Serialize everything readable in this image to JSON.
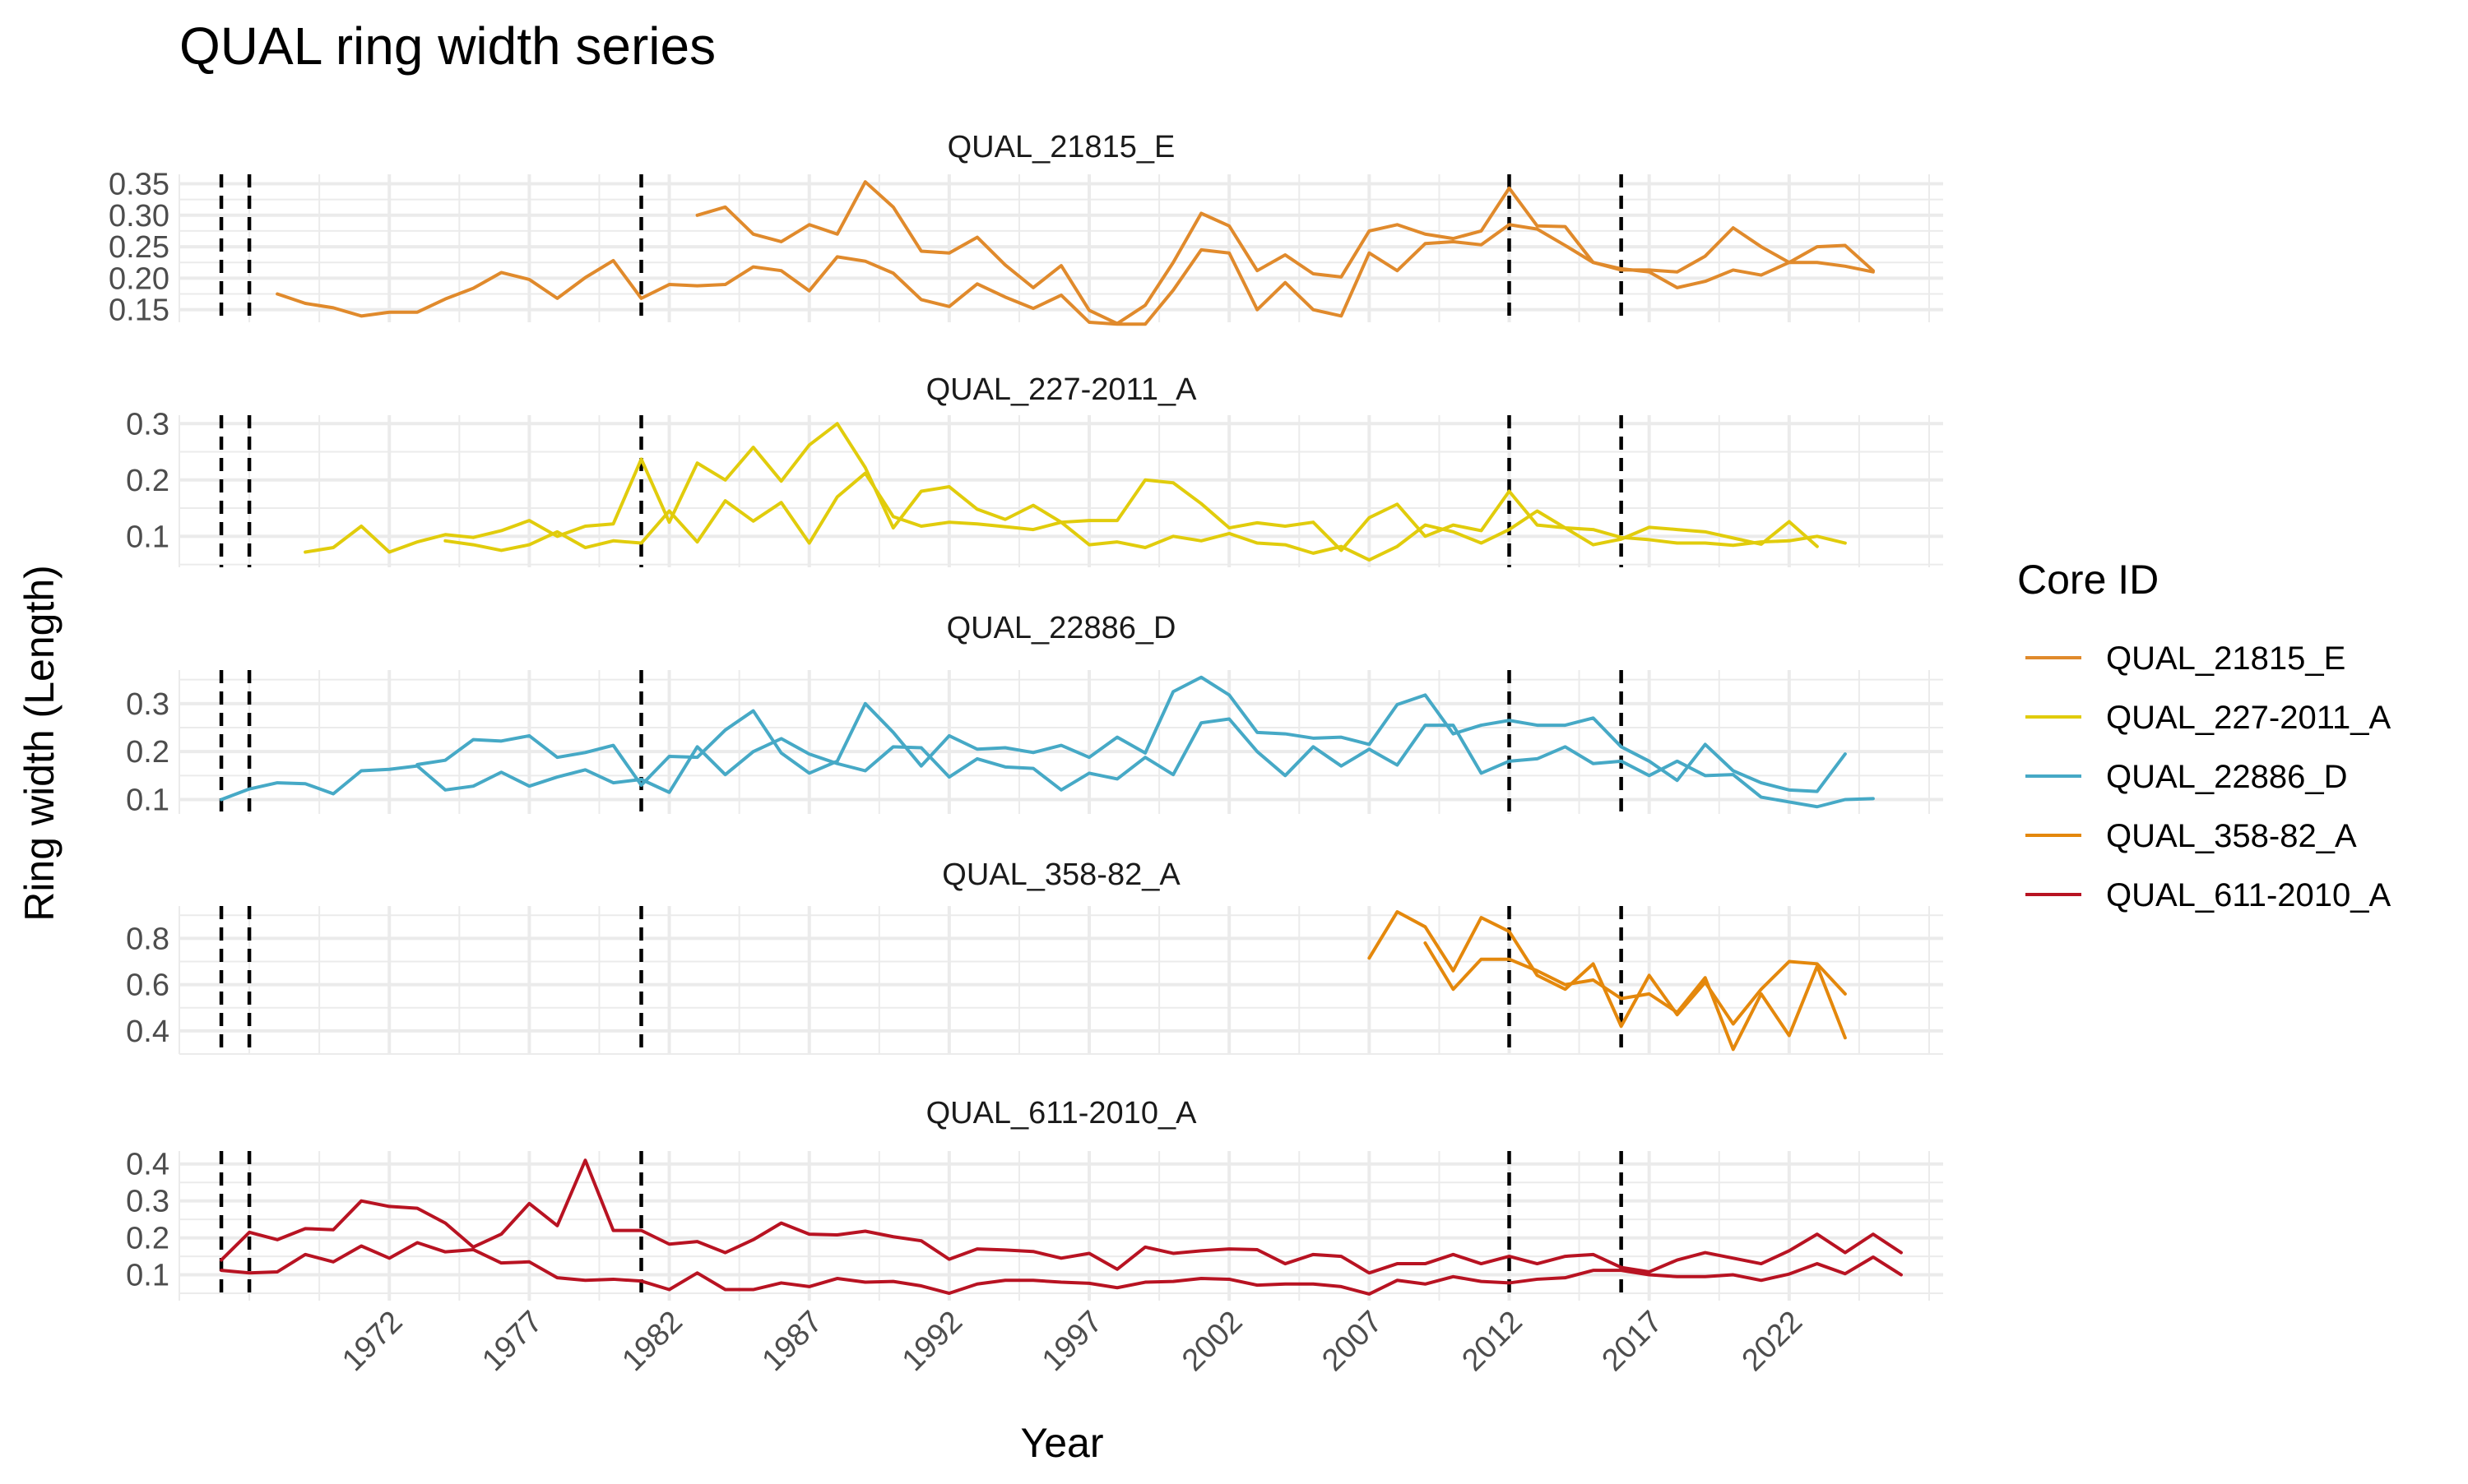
{
  "chart_data": {
    "type": "line",
    "title": "QUAL ring width series",
    "xlabel": "Year",
    "ylabel": "Ring width (Length)",
    "legend": {
      "title": "Core ID",
      "placement": "right",
      "entries": [
        {
          "name": "QUAL_21815_E",
          "color": "#E08A2C"
        },
        {
          "name": "QUAL_227-2011_A",
          "color": "#E1CC0C"
        },
        {
          "name": "QUAL_22886_D",
          "color": "#46A9C6"
        },
        {
          "name": "QUAL_358-82_A",
          "color": "#E4880C"
        },
        {
          "name": "QUAL_611-2010_A",
          "color": "#B81322"
        }
      ]
    },
    "x_ticks": [
      1972,
      1977,
      1982,
      1987,
      1992,
      1997,
      2002,
      2007,
      2012,
      2017,
      2022
    ],
    "xlim": [
      1964.5,
      2027.5
    ],
    "marker_years": [
      1966,
      1967,
      1981,
      2012,
      2016
    ],
    "grid": true,
    "panels": [
      {
        "title": "QUAL_21815_E",
        "color": "#E08A2C",
        "ylim": [
          0.13,
          0.365
        ],
        "y_ticks": [
          0.15,
          0.2,
          0.25,
          0.3,
          0.35
        ],
        "y_tick_labels": [
          "0.15",
          "0.20",
          "0.25",
          "0.30",
          "0.35"
        ],
        "series": [
          {
            "x_start": 1968,
            "values": [
              0.175,
              0.16,
              0.153,
              0.14,
              0.146,
              0.146,
              0.167,
              0.184,
              0.209,
              0.198,
              0.168,
              0.201,
              0.228,
              0.168,
              0.19,
              0.188,
              0.19,
              0.218,
              0.212,
              0.18,
              0.234,
              0.227,
              0.208,
              0.166,
              0.155,
              0.191,
              0.17,
              0.152,
              0.173,
              0.13,
              0.127,
              0.127,
              0.181,
              0.245,
              0.24,
              0.15,
              0.193,
              0.15,
              0.14,
              0.24,
              0.212,
              0.255,
              0.258,
              0.253,
              0.285,
              0.278,
              0.252,
              0.225,
              0.215,
              0.21,
              0.185,
              0.195,
              0.213,
              0.205,
              0.225,
              0.25,
              0.252,
              0.212
            ]
          },
          {
            "x_start": 1983,
            "values": [
              0.3,
              0.313,
              0.27,
              0.258,
              0.285,
              0.27,
              0.353,
              0.313,
              0.243,
              0.24,
              0.265,
              0.221,
              0.185,
              0.22,
              0.149,
              0.128,
              0.157,
              0.225,
              0.303,
              0.283,
              0.212,
              0.237,
              0.207,
              0.202,
              0.275,
              0.285,
              0.27,
              0.263,
              0.275,
              0.343,
              0.283,
              0.282,
              0.225,
              0.213,
              0.213,
              0.21,
              0.235,
              0.28,
              0.25,
              0.225,
              0.225,
              0.219,
              0.21
            ]
          }
        ]
      },
      {
        "title": "QUAL_227-2011_A",
        "color": "#E1CC0C",
        "ylim": [
          0.045,
          0.315
        ],
        "y_ticks": [
          0.1,
          0.2,
          0.3
        ],
        "y_tick_labels": [
          "0.1",
          "0.2",
          "0.3"
        ],
        "series": [
          {
            "x_start": 1969,
            "values": [
              0.072,
              0.08,
              0.118,
              0.072,
              0.09,
              0.103,
              0.098,
              0.11,
              0.128,
              0.1,
              0.118,
              0.122,
              0.237,
              0.125,
              0.23,
              0.2,
              0.258,
              0.198,
              0.262,
              0.3,
              0.222,
              0.115,
              0.18,
              0.188,
              0.148,
              0.13,
              0.155,
              0.125,
              0.128,
              0.128,
              0.2,
              0.195,
              0.158,
              0.115,
              0.124,
              0.118,
              0.125,
              0.075,
              0.133,
              0.157,
              0.1,
              0.12,
              0.11,
              0.18,
              0.12,
              0.115,
              0.085,
              0.095,
              0.116,
              0.112,
              0.108,
              0.097,
              0.086,
              0.126,
              0.082
            ]
          },
          {
            "x_start": 1974,
            "values": [
              0.092,
              0.085,
              0.075,
              0.085,
              0.108,
              0.08,
              0.092,
              0.088,
              0.145,
              0.09,
              0.163,
              0.127,
              0.16,
              0.088,
              0.17,
              0.212,
              0.135,
              0.118,
              0.125,
              0.122,
              0.117,
              0.112,
              0.125,
              0.085,
              0.09,
              0.08,
              0.1,
              0.092,
              0.105,
              0.088,
              0.085,
              0.07,
              0.082,
              0.058,
              0.082,
              0.12,
              0.108,
              0.088,
              0.112,
              0.145,
              0.115,
              0.112,
              0.098,
              0.094,
              0.088,
              0.088,
              0.084,
              0.09,
              0.092,
              0.1,
              0.088
            ]
          }
        ]
      },
      {
        "title": "QUAL_22886_D",
        "color": "#46A9C6",
        "ylim": [
          0.07,
          0.37
        ],
        "y_ticks": [
          0.1,
          0.2,
          0.3
        ],
        "y_tick_labels": [
          "0.1",
          "0.2",
          "0.3"
        ],
        "series": [
          {
            "x_start": 1966,
            "values": [
              0.1,
              0.122,
              0.135,
              0.133,
              0.112,
              0.16,
              0.163,
              0.17,
              0.12,
              0.128,
              0.157,
              0.128,
              0.147,
              0.162,
              0.135,
              0.142,
              0.115,
              0.21,
              0.152,
              0.2,
              0.227,
              0.195,
              0.175,
              0.16,
              0.21,
              0.208,
              0.147,
              0.185,
              0.168,
              0.165,
              0.12,
              0.155,
              0.143,
              0.188,
              0.152,
              0.26,
              0.268,
              0.2,
              0.15,
              0.21,
              0.17,
              0.205,
              0.172,
              0.255,
              0.255,
              0.155,
              0.18,
              0.185,
              0.21,
              0.175,
              0.18,
              0.15,
              0.18,
              0.15,
              0.152,
              0.105,
              0.095,
              0.085,
              0.1,
              0.102
            ]
          },
          {
            "x_start": 1973,
            "values": [
              0.173,
              0.182,
              0.225,
              0.222,
              0.233,
              0.188,
              0.198,
              0.213,
              0.13,
              0.19,
              0.188,
              0.245,
              0.285,
              0.197,
              0.155,
              0.18,
              0.3,
              0.24,
              0.17,
              0.233,
              0.205,
              0.208,
              0.198,
              0.213,
              0.188,
              0.23,
              0.197,
              0.325,
              0.355,
              0.318,
              0.24,
              0.237,
              0.228,
              0.23,
              0.215,
              0.298,
              0.318,
              0.237,
              0.255,
              0.265,
              0.255,
              0.255,
              0.27,
              0.21,
              0.18,
              0.14,
              0.215,
              0.16,
              0.135,
              0.12,
              0.117,
              0.195
            ]
          }
        ]
      },
      {
        "title": "QUAL_358-82_A",
        "color": "#E4880C",
        "ylim": [
          0.3,
          0.94
        ],
        "y_ticks": [
          0.4,
          0.6,
          0.8
        ],
        "y_tick_labels": [
          "0.4",
          "0.6",
          "0.8"
        ],
        "series": [
          {
            "x_start": 2007,
            "values": [
              0.715,
              0.915,
              0.85,
              0.66,
              0.89,
              0.83,
              0.64,
              0.58,
              0.69,
              0.42,
              0.64,
              0.47,
              0.61,
              0.43,
              0.58,
              0.7,
              0.69,
              0.56
            ]
          },
          {
            "x_start": 2009,
            "values": [
              0.78,
              0.58,
              0.71,
              0.71,
              0.66,
              0.6,
              0.62,
              0.54,
              0.56,
              0.48,
              0.63,
              0.32,
              0.56,
              0.38,
              0.68,
              0.37
            ]
          }
        ]
      },
      {
        "title": "QUAL_611-2010_A",
        "color": "#B81322",
        "ylim": [
          0.03,
          0.435
        ],
        "y_ticks": [
          0.1,
          0.2,
          0.3,
          0.4
        ],
        "y_tick_labels": [
          "0.1",
          "0.2",
          "0.3",
          "0.4"
        ],
        "series": [
          {
            "x_start": 1966,
            "values": [
              0.14,
              0.215,
              0.195,
              0.225,
              0.222,
              0.3,
              0.285,
              0.28,
              0.24,
              0.175,
              0.21,
              0.293,
              0.233,
              0.41,
              0.22,
              0.22,
              0.183,
              0.19,
              0.16,
              0.195,
              0.24,
              0.21,
              0.208,
              0.218,
              0.203,
              0.192,
              0.142,
              0.17,
              0.167,
              0.163,
              0.145,
              0.158,
              0.115,
              0.175,
              0.158,
              0.165,
              0.17,
              0.168,
              0.13,
              0.155,
              0.15,
              0.105,
              0.13,
              0.13,
              0.155,
              0.13,
              0.15,
              0.13,
              0.15,
              0.155,
              0.12,
              0.108,
              0.14,
              0.16,
              0.145,
              0.13,
              0.165,
              0.21,
              0.16,
              0.21,
              0.16
            ]
          },
          {
            "x_start": 1966,
            "values": [
              0.112,
              0.105,
              0.108,
              0.155,
              0.135,
              0.178,
              0.145,
              0.187,
              0.162,
              0.168,
              0.132,
              0.135,
              0.092,
              0.085,
              0.088,
              0.083,
              0.06,
              0.105,
              0.06,
              0.06,
              0.078,
              0.068,
              0.09,
              0.08,
              0.082,
              0.07,
              0.05,
              0.075,
              0.085,
              0.085,
              0.08,
              0.077,
              0.065,
              0.08,
              0.082,
              0.09,
              0.088,
              0.072,
              0.075,
              0.075,
              0.068,
              0.048,
              0.085,
              0.075,
              0.095,
              0.082,
              0.078,
              0.088,
              0.092,
              0.112,
              0.112,
              0.1,
              0.095,
              0.095,
              0.1,
              0.085,
              0.102,
              0.13,
              0.103,
              0.148,
              0.1
            ]
          }
        ]
      }
    ]
  }
}
